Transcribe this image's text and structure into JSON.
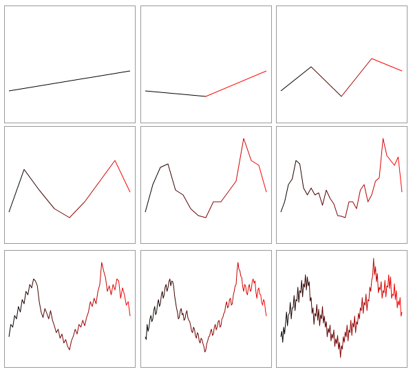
{
  "chart_data": [
    {
      "type": "line",
      "ylim": [
        0,
        170
      ],
      "colors": [
        "#000000",
        "#ff0000"
      ],
      "values": [
        46,
        75
      ]
    },
    {
      "type": "line",
      "ylim": [
        0,
        170
      ],
      "colors": [
        "#000000",
        "#ff0000"
      ],
      "values": [
        46,
        38,
        75
      ]
    },
    {
      "type": "line",
      "ylim": [
        0,
        170
      ],
      "colors": [
        "#000000",
        "#ff0000"
      ],
      "values": [
        46,
        81,
        38,
        93,
        75
      ]
    },
    {
      "type": "line",
      "ylim": [
        0,
        170
      ],
      "colors": [
        "#000000",
        "#ff0000"
      ],
      "values": [
        45,
        107,
        77,
        50,
        37,
        60,
        90,
        120,
        74
      ]
    },
    {
      "type": "line",
      "ylim": [
        0,
        170
      ],
      "colors": [
        "#000000",
        "#ff0000"
      ],
      "values": [
        45,
        85,
        110,
        115,
        77,
        70,
        50,
        40,
        37,
        60,
        60,
        75,
        90,
        152,
        120,
        113,
        74
      ]
    },
    {
      "type": "line",
      "ylim": [
        0,
        170
      ],
      "colors": [
        "#000000",
        "#ff0000"
      ],
      "values": [
        45,
        60,
        85,
        93,
        120,
        115,
        80,
        70,
        80,
        70,
        73,
        55,
        77,
        65,
        57,
        40,
        39,
        37,
        60,
        60,
        50,
        77,
        85,
        60,
        70,
        90,
        95,
        152,
        127,
        120,
        113,
        125,
        74
      ]
    },
    {
      "type": "line",
      "ylim": [
        0,
        170
      ],
      "colors": [
        "#000000",
        "#ff0000"
      ],
      "values": [
        44,
        62,
        58,
        75,
        70,
        88,
        80,
        98,
        92,
        110,
        105,
        120,
        115,
        128,
        125,
        118,
        95,
        80,
        72,
        85,
        78,
        70,
        82,
        68,
        60,
        50,
        55,
        42,
        48,
        35,
        40,
        30,
        25,
        38,
        45,
        55,
        48,
        62,
        58,
        68,
        60,
        72,
        80,
        95,
        88,
        100,
        92,
        110,
        120,
        152,
        140,
        130,
        110,
        118,
        105,
        120,
        112,
        128,
        125,
        100,
        115,
        105,
        90,
        95,
        74
      ]
    },
    {
      "type": "line",
      "ylim": [
        0,
        170
      ],
      "colors": [
        "#000000",
        "#ff0000"
      ],
      "values": [
        44,
        40,
        62,
        52,
        58,
        70,
        75,
        66,
        70,
        82,
        88,
        76,
        80,
        92,
        98,
        88,
        92,
        104,
        110,
        100,
        105,
        116,
        120,
        110,
        115,
        124,
        128,
        118,
        125,
        124,
        118,
        104,
        95,
        86,
        80,
        70,
        72,
        82,
        85,
        76,
        78,
        68,
        70,
        78,
        82,
        72,
        68,
        66,
        60,
        52,
        50,
        58,
        55,
        46,
        42,
        50,
        48,
        38,
        35,
        42,
        40,
        34,
        30,
        22,
        25,
        34,
        38,
        44,
        45,
        52,
        55,
        46,
        48,
        58,
        62,
        54,
        58,
        66,
        68,
        58,
        60,
        70,
        72,
        78,
        80,
        90,
        95,
        86,
        88,
        98,
        100,
        90,
        92,
        104,
        110,
        118,
        120,
        140,
        152,
        142,
        140,
        132,
        130,
        116,
        110,
        120,
        118,
        108,
        105,
        116,
        120,
        110,
        112,
        124,
        128,
        122,
        125,
        108,
        100,
        112,
        115,
        106,
        105,
        94,
        90,
        98,
        95,
        82,
        74
      ]
    },
    {
      "type": "line",
      "ylim": [
        0,
        170
      ],
      "colors": [
        "#000000",
        "#ff0000"
      ],
      "values": [
        44,
        52,
        36,
        58,
        48,
        64,
        80,
        60,
        76,
        78,
        94,
        70,
        86,
        86,
        104,
        82,
        98,
        96,
        116,
        94,
        111,
        108,
        126,
        102,
        121,
        116,
        134,
        112,
        131,
        118,
        124,
        96,
        101,
        78,
        86,
        62,
        78,
        74,
        91,
        68,
        84,
        60,
        76,
        70,
        88,
        64,
        74,
        58,
        66,
        44,
        56,
        50,
        61,
        38,
        48,
        42,
        54,
        30,
        41,
        34,
        46,
        26,
        36,
        14,
        31,
        26,
        44,
        36,
        51,
        44,
        61,
        38,
        54,
        50,
        68,
        46,
        64,
        58,
        74,
        50,
        66,
        62,
        78,
        70,
        86,
        82,
        101,
        78,
        94,
        90,
        106,
        82,
        98,
        96,
        116,
        110,
        126,
        132,
        158,
        134,
        146,
        124,
        136,
        108,
        116,
        112,
        124,
        100,
        111,
        108,
        126,
        102,
        118,
        116,
        134,
        114,
        131,
        100,
        106,
        104,
        121,
        98,
        111,
        86,
        96,
        90,
        101,
        74,
        80
      ]
    }
  ]
}
